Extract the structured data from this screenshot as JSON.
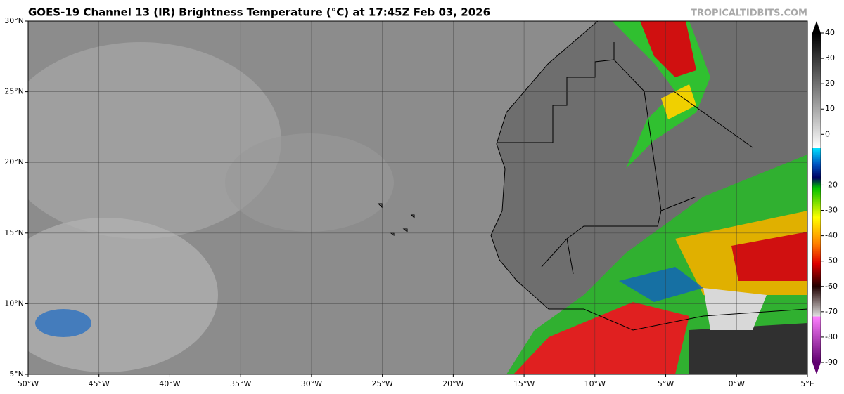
{
  "map": {
    "title": "GOES-19 Channel 13 (IR) Brightness Temperature (°C) at 17:45Z Feb 03, 2026",
    "source": "TROPICALTIDBITS.COM",
    "lon_range": [
      -50,
      5
    ],
    "lat_range": [
      5,
      30
    ],
    "lon_labels": [
      {
        "value": -50,
        "label": "50°W"
      },
      {
        "value": -45,
        "label": "45°W"
      },
      {
        "value": -40,
        "label": "40°W"
      },
      {
        "value": -35,
        "label": "35°W"
      },
      {
        "value": -30,
        "label": "30°W"
      },
      {
        "value": -25,
        "label": "25°W"
      },
      {
        "value": -20,
        "label": "20°W"
      },
      {
        "value": -15,
        "label": "15°W"
      },
      {
        "value": -10,
        "label": "10°W"
      },
      {
        "value": -5,
        "label": "5°W"
      },
      {
        "value": 0,
        "label": "0°W"
      },
      {
        "value": 5,
        "label": "5°E"
      }
    ],
    "lat_labels": [
      {
        "value": 30,
        "label": "30°N"
      },
      {
        "value": 25,
        "label": "25°N"
      },
      {
        "value": 20,
        "label": "20°N"
      },
      {
        "value": 15,
        "label": "15°N"
      },
      {
        "value": 10,
        "label": "10°N"
      },
      {
        "value": 5,
        "label": "5°N"
      }
    ],
    "colorbar": {
      "range": [
        -90,
        40
      ],
      "ticks": [
        40,
        30,
        20,
        10,
        0,
        -20,
        -30,
        -40,
        -50,
        -60,
        -70,
        -80,
        -90
      ]
    }
  }
}
